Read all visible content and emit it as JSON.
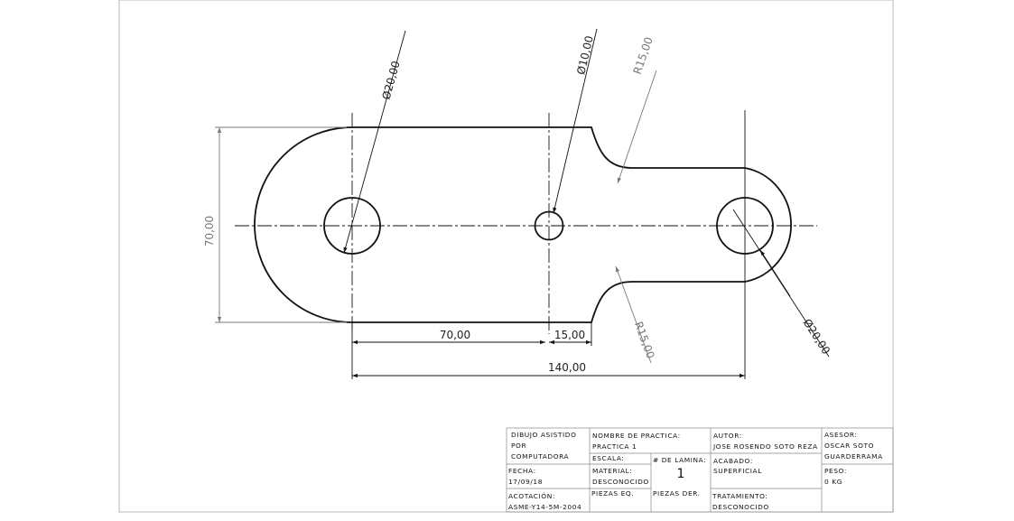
{
  "drawing": {
    "dimensions": {
      "hole_left_diameter": "Ø20,00",
      "hole_middle_diameter": "Ø10,00",
      "hole_right_diameter": "Ø20,00",
      "fillet_top_radius": "R15,00",
      "fillet_bottom_radius": "R15,00",
      "overall_height": "70,00",
      "hole_spacing": "70,00",
      "step_offset": "15,00",
      "overall_length": "140,00"
    }
  },
  "title_block": {
    "discipline_line1": "DIBUJO ASISTIDO",
    "discipline_line2": "POR",
    "discipline_line3": "COMPUTADORA",
    "date_label": "FECHA:",
    "date_value": "17/09/18",
    "dimensioning_label": "ACOTACIÓN:",
    "dimensioning_value": "ASME-Y14-5M-2004",
    "practice_name_label": "NOMBRE DE PRACTICA:",
    "practice_name_value": "PRACTICA 1",
    "scale_label": "ESCALA:",
    "sheet_number_label": "# DE LAMINA:",
    "sheet_number_value": "1",
    "material_label": "MATERIAL:",
    "material_value": "DESCONOCIDO",
    "parts_eq_label": "PIEZAS EQ.",
    "parts_der_label": "PIEZAS DER.",
    "author_label": "AUTOR:",
    "author_value": "JOSE ROSENDO SOTO REZA",
    "finish_label": "ACABADO:",
    "finish_value": "SUPERFICIAL",
    "treatment_label": "TRATAMIENTO:",
    "treatment_value": "DESCONOCIDO",
    "advisor_label": "ASESOR:",
    "advisor_value_line1": "OSCAR SOTO",
    "advisor_value_line2": "GUARDERRAMA",
    "weight_label": "PESO:",
    "weight_value": "0 KG"
  }
}
